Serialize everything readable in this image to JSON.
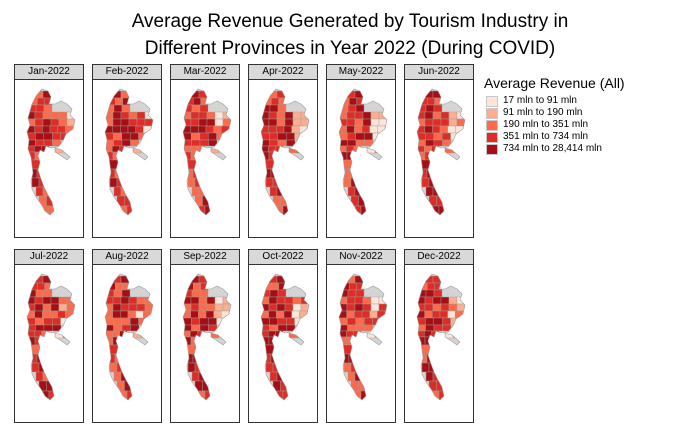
{
  "chart_data": {
    "type": "choropleth-map-facets",
    "title": "Average Revenue Generated by Tourism Industry in\nDifferent Provinces in Year 2022 (During COVID)",
    "panels": [
      "Jan-2022",
      "Feb-2022",
      "Mar-2022",
      "Apr-2022",
      "May-2022",
      "Jun-2022",
      "Jul-2022",
      "Aug-2022",
      "Sep-2022",
      "Oct-2022",
      "Nov-2022",
      "Dec-2022"
    ],
    "legend": {
      "title": "Average Revenue (All)",
      "placement": "right",
      "bins": [
        {
          "label": "17 mln to 91 mln",
          "color": "#fee5d9"
        },
        {
          "label": "91 mln to 190 mln",
          "color": "#fcae91"
        },
        {
          "label": "190 mln to 351 mln",
          "color": "#fb6a4a"
        },
        {
          "label": "351 mln to 734 mln",
          "color": "#de2d26"
        },
        {
          "label": "734 mln to 28,414 mln",
          "color": "#a50f15"
        }
      ]
    },
    "border_color": "#9e9e9e",
    "missing_color": "#d4d4d4"
  }
}
